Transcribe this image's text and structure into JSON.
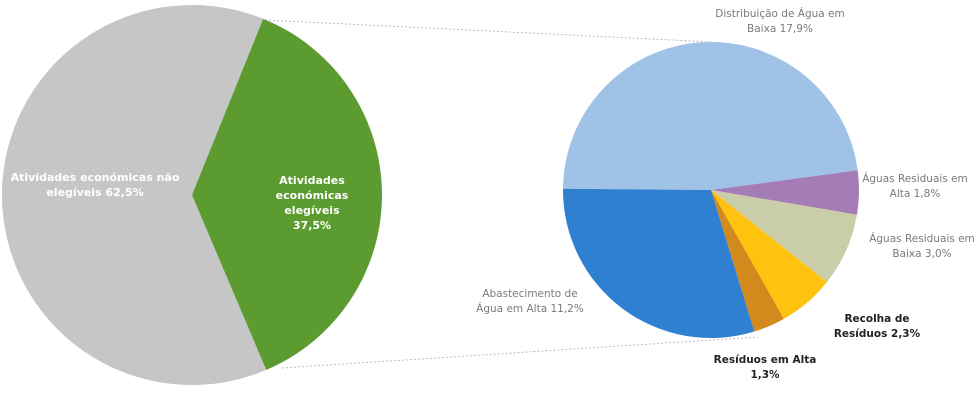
{
  "chart_data": [
    {
      "type": "pie",
      "categories": [
        "Atividades económicas não elegíveis",
        "Atividades económicas elegíveis"
      ],
      "values": [
        62.5,
        37.5
      ],
      "value_labels": [
        "62,5%",
        "37,5%"
      ],
      "colors": [
        "#c6c6c6",
        "#5b9b2f"
      ]
    },
    {
      "type": "pie",
      "categories": [
        "Distribuição de Água em Baixa",
        "Águas Residuais em Alta",
        "Águas Residuais em Baixa",
        "Recolha de Resíduos",
        "Resíduos em Alta",
        "Abastecimento de Água em Alta"
      ],
      "values": [
        17.9,
        1.8,
        3.0,
        2.3,
        1.3,
        11.2
      ],
      "value_labels": [
        "17,9%",
        "1,8%",
        "3,0%",
        "2,3%",
        "1,3%",
        "11,2%"
      ],
      "colors": [
        "#9fc2e6",
        "#a57db6",
        "#c9cea9",
        "#ffc20e",
        "#d38a1c",
        "#2f80d1"
      ]
    }
  ]
}
